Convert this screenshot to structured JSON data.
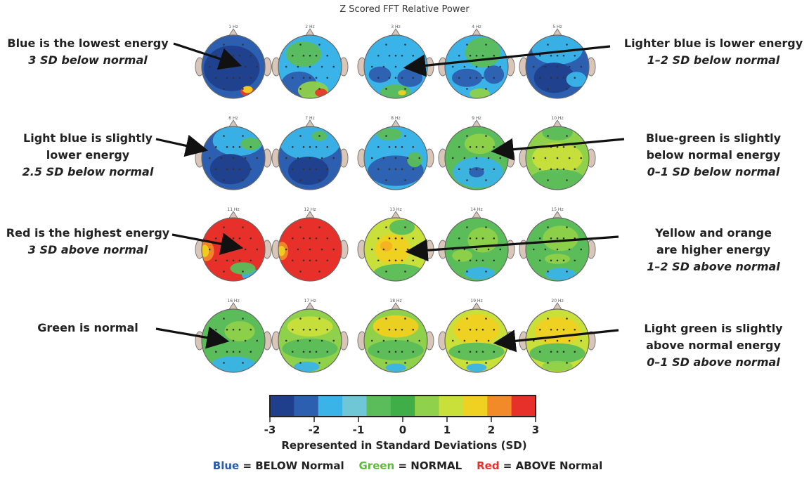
{
  "title": "Z Scored FFT Relative Power",
  "maps": [
    {
      "label": "1 Hz",
      "base": "#2d5fb0",
      "blobs": [
        {
          "c": "#1f3f8c",
          "rx": 0.55,
          "ry": 0.45,
          "ox": -0.05,
          "oy": 0.05
        },
        {
          "c": "#e83a2a",
          "rx": 0.14,
          "ry": 0.1,
          "ox": 0.45,
          "oy": 0.78
        },
        {
          "c": "#f0d020",
          "rx": 0.1,
          "ry": 0.07,
          "ox": 0.45,
          "oy": 0.72
        }
      ]
    },
    {
      "label": "2 Hz",
      "base": "#3ab4e8",
      "blobs": [
        {
          "c": "#2d5fb0",
          "rx": 0.35,
          "ry": 0.25,
          "ox": -0.35,
          "oy": 0.55
        },
        {
          "c": "#8fd14a",
          "rx": 0.3,
          "ry": 0.18,
          "ox": 0.1,
          "oy": 0.75
        },
        {
          "c": "#e83a2a",
          "rx": 0.12,
          "ry": 0.08,
          "ox": 0.35,
          "oy": 0.82
        },
        {
          "c": "#5bbd5a",
          "rx": 0.35,
          "ry": 0.25,
          "ox": -0.2,
          "oy": -0.4
        }
      ]
    },
    {
      "label": "3 Hz",
      "base": "#3ab4e8",
      "blobs": [
        {
          "c": "#2d5fb0",
          "rx": 0.25,
          "ry": 0.18,
          "ox": 0.45,
          "oy": 0.35
        },
        {
          "c": "#2d5fb0",
          "rx": 0.22,
          "ry": 0.16,
          "ox": -0.5,
          "oy": 0.25
        },
        {
          "c": "#5bbd5a",
          "rx": 0.3,
          "ry": 0.15,
          "ox": 0.0,
          "oy": 0.8
        },
        {
          "c": "#f0d020",
          "rx": 0.08,
          "ry": 0.05,
          "ox": 0.2,
          "oy": 0.82
        }
      ]
    },
    {
      "label": "4 Hz",
      "base": "#3ab4e8",
      "blobs": [
        {
          "c": "#5bbd5a",
          "rx": 0.35,
          "ry": 0.3,
          "ox": 0.2,
          "oy": -0.45
        },
        {
          "c": "#2d5fb0",
          "rx": 0.3,
          "ry": 0.18,
          "ox": -0.3,
          "oy": 0.35
        },
        {
          "c": "#2d5fb0",
          "rx": 0.2,
          "ry": 0.18,
          "ox": 0.55,
          "oy": 0.25
        },
        {
          "c": "#8fd14a",
          "rx": 0.2,
          "ry": 0.1,
          "ox": 0.1,
          "oy": 0.85
        }
      ]
    },
    {
      "label": "5 Hz",
      "base": "#2d5fb0",
      "blobs": [
        {
          "c": "#3ab4e8",
          "rx": 0.5,
          "ry": 0.3,
          "ox": 0.0,
          "oy": -0.55
        },
        {
          "c": "#1f3f8c",
          "rx": 0.4,
          "ry": 0.3,
          "ox": -0.1,
          "oy": 0.35
        },
        {
          "c": "#3ab4e8",
          "rx": 0.2,
          "ry": 0.15,
          "ox": 0.6,
          "oy": 0.4
        }
      ]
    },
    {
      "label": "6 Hz",
      "base": "#2d5fb0",
      "blobs": [
        {
          "c": "#3ab4e8",
          "rx": 0.5,
          "ry": 0.3,
          "ox": 0.15,
          "oy": -0.55
        },
        {
          "c": "#5bbd5a",
          "rx": 0.2,
          "ry": 0.12,
          "ox": 0.55,
          "oy": -0.45
        },
        {
          "c": "#1f3f8c",
          "rx": 0.4,
          "ry": 0.3,
          "ox": -0.1,
          "oy": 0.35
        }
      ]
    },
    {
      "label": "7 Hz",
      "base": "#2d5fb0",
      "blobs": [
        {
          "c": "#3ab4e8",
          "rx": 0.6,
          "ry": 0.35,
          "ox": 0.0,
          "oy": -0.5
        },
        {
          "c": "#5bbd5a",
          "rx": 0.15,
          "ry": 0.1,
          "ox": 0.3,
          "oy": -0.7
        },
        {
          "c": "#1f3f8c",
          "rx": 0.4,
          "ry": 0.28,
          "ox": -0.05,
          "oy": 0.4
        }
      ]
    },
    {
      "label": "8 Hz",
      "base": "#3ab4e8",
      "blobs": [
        {
          "c": "#2d5fb0",
          "rx": 0.55,
          "ry": 0.3,
          "ox": 0.0,
          "oy": 0.4
        },
        {
          "c": "#5bbd5a",
          "rx": 0.25,
          "ry": 0.12,
          "ox": -0.2,
          "oy": -0.75
        },
        {
          "c": "#5bbd5a",
          "rx": 0.15,
          "ry": 0.15,
          "ox": 0.6,
          "oy": 0.05
        }
      ]
    },
    {
      "label": "9 Hz",
      "base": "#5bbd5a",
      "blobs": [
        {
          "c": "#3ab4e8",
          "rx": 0.5,
          "ry": 0.3,
          "ox": 0.05,
          "oy": 0.45
        },
        {
          "c": "#2d5fb0",
          "rx": 0.15,
          "ry": 0.1,
          "ox": 0.0,
          "oy": 0.45
        },
        {
          "c": "#8fd14a",
          "rx": 0.3,
          "ry": 0.2,
          "ox": 0.1,
          "oy": -0.45
        }
      ]
    },
    {
      "label": "10 Hz",
      "base": "#8fd14a",
      "blobs": [
        {
          "c": "#c9df3a",
          "rx": 0.5,
          "ry": 0.3,
          "ox": 0.0,
          "oy": 0.0
        },
        {
          "c": "#5bbd5a",
          "rx": 0.55,
          "ry": 0.22,
          "ox": 0.0,
          "oy": 0.7
        },
        {
          "c": "#5bbd5a",
          "rx": 0.3,
          "ry": 0.15,
          "ox": 0.0,
          "oy": -0.8
        }
      ]
    },
    {
      "label": "11 Hz",
      "base": "#e8302a",
      "blobs": [
        {
          "c": "#f28a2a",
          "rx": 0.15,
          "ry": 0.2,
          "ox": -0.85,
          "oy": 0.05
        },
        {
          "c": "#f0d020",
          "rx": 0.08,
          "ry": 0.12,
          "ox": -0.9,
          "oy": 0.05
        },
        {
          "c": "#3ab4e8",
          "rx": 0.18,
          "ry": 0.12,
          "ox": 0.55,
          "oy": 0.8
        },
        {
          "c": "#5bbd5a",
          "rx": 0.25,
          "ry": 0.12,
          "ox": 0.3,
          "oy": 0.6
        }
      ]
    },
    {
      "label": "12 Hz",
      "base": "#e8302a",
      "blobs": [
        {
          "c": "#f28a2a",
          "rx": 0.12,
          "ry": 0.18,
          "ox": -0.88,
          "oy": 0.05
        },
        {
          "c": "#f0d020",
          "rx": 0.07,
          "ry": 0.1,
          "ox": -0.9,
          "oy": 0.05
        }
      ]
    },
    {
      "label": "13 Hz",
      "base": "#c9df3a",
      "blobs": [
        {
          "c": "#f0d020",
          "rx": 0.35,
          "ry": 0.3,
          "ox": -0.1,
          "oy": 0.0
        },
        {
          "c": "#f5b020",
          "rx": 0.12,
          "ry": 0.1,
          "ox": -0.3,
          "oy": -0.1
        },
        {
          "c": "#5bbd5a",
          "rx": 0.5,
          "ry": 0.18,
          "ox": 0.1,
          "oy": 0.75
        },
        {
          "c": "#5bbd5a",
          "rx": 0.25,
          "ry": 0.15,
          "ox": 0.2,
          "oy": -0.7
        }
      ]
    },
    {
      "label": "14 Hz",
      "base": "#5bbd5a",
      "blobs": [
        {
          "c": "#8fd14a",
          "rx": 0.3,
          "ry": 0.25,
          "ox": 0.2,
          "oy": -0.3
        },
        {
          "c": "#3ab4e8",
          "rx": 0.3,
          "ry": 0.12,
          "ox": 0.1,
          "oy": 0.75
        },
        {
          "c": "#8fd14a",
          "rx": 0.2,
          "ry": 0.12,
          "ox": -0.45,
          "oy": 0.2
        }
      ]
    },
    {
      "label": "15 Hz",
      "base": "#5bbd5a",
      "blobs": [
        {
          "c": "#8fd14a",
          "rx": 0.35,
          "ry": 0.25,
          "ox": 0.1,
          "oy": -0.35
        },
        {
          "c": "#3ab4e8",
          "rx": 0.3,
          "ry": 0.12,
          "ox": 0.1,
          "oy": 0.78
        },
        {
          "c": "#8fd14a",
          "rx": 0.25,
          "ry": 0.1,
          "ox": 0.0,
          "oy": 0.3
        }
      ]
    },
    {
      "label": "16 Hz",
      "base": "#5bbd5a",
      "blobs": [
        {
          "c": "#3ab4e8",
          "rx": 0.45,
          "ry": 0.18,
          "ox": 0.0,
          "oy": 0.78
        },
        {
          "c": "#8fd14a",
          "rx": 0.3,
          "ry": 0.2,
          "ox": 0.2,
          "oy": -0.3
        }
      ]
    },
    {
      "label": "17 Hz",
      "base": "#8fd14a",
      "blobs": [
        {
          "c": "#c9df3a",
          "rx": 0.45,
          "ry": 0.2,
          "ox": 0.0,
          "oy": -0.45
        },
        {
          "c": "#5bbd5a",
          "rx": 0.55,
          "ry": 0.2,
          "ox": 0.0,
          "oy": 0.25
        },
        {
          "c": "#3ab4e8",
          "rx": 0.25,
          "ry": 0.1,
          "ox": -0.1,
          "oy": 0.82
        }
      ]
    },
    {
      "label": "18 Hz",
      "base": "#8fd14a",
      "blobs": [
        {
          "c": "#f0d020",
          "rx": 0.45,
          "ry": 0.22,
          "ox": 0.0,
          "oy": -0.45
        },
        {
          "c": "#5bbd5a",
          "rx": 0.55,
          "ry": 0.2,
          "ox": 0.0,
          "oy": 0.3
        },
        {
          "c": "#3ab4e8",
          "rx": 0.2,
          "ry": 0.08,
          "ox": 0.0,
          "oy": 0.85
        }
      ]
    },
    {
      "label": "19 Hz",
      "base": "#c9df3a",
      "blobs": [
        {
          "c": "#f0d020",
          "rx": 0.45,
          "ry": 0.3,
          "ox": 0.0,
          "oy": -0.35
        },
        {
          "c": "#5bbd5a",
          "rx": 0.55,
          "ry": 0.18,
          "ox": 0.0,
          "oy": 0.35
        },
        {
          "c": "#3ab4e8",
          "rx": 0.2,
          "ry": 0.08,
          "ox": 0.0,
          "oy": 0.85
        }
      ]
    },
    {
      "label": "20 Hz",
      "base": "#c9df3a",
      "blobs": [
        {
          "c": "#f0d020",
          "rx": 0.45,
          "ry": 0.28,
          "ox": 0.0,
          "oy": -0.3
        },
        {
          "c": "#5bbd5a",
          "rx": 0.55,
          "ry": 0.2,
          "ox": 0.0,
          "oy": 0.4
        },
        {
          "c": "#8fd14a",
          "rx": 0.3,
          "ry": 0.1,
          "ox": 0.0,
          "oy": 0.8
        }
      ]
    }
  ],
  "annotations": [
    {
      "key": "blue-lowest",
      "lines": [
        "Blue is the lowest energy"
      ],
      "sub": "3 SD below normal"
    },
    {
      "key": "lighter-blue",
      "lines": [
        "Lighter blue is lower energy"
      ],
      "sub": "1–2 SD below normal"
    },
    {
      "key": "light-blue",
      "lines": [
        "Light blue is slightly",
        "lower energy"
      ],
      "sub": "2.5 SD below normal"
    },
    {
      "key": "blue-green",
      "lines": [
        "Blue-green is slightly",
        "below normal energy"
      ],
      "sub": "0–1 SD below normal"
    },
    {
      "key": "red-highest",
      "lines": [
        "Red is the highest energy"
      ],
      "sub": "3 SD above normal"
    },
    {
      "key": "yellow-orange",
      "lines": [
        "Yellow and orange",
        "are higher energy"
      ],
      "sub": "1–2 SD above normal"
    },
    {
      "key": "green-normal",
      "lines": [
        "Green is normal"
      ],
      "sub": ""
    },
    {
      "key": "light-green",
      "lines": [
        "Light green is slightly",
        "above normal energy"
      ],
      "sub": "0–1 SD above normal"
    }
  ],
  "colorbar": {
    "colors": [
      "#1f3f8c",
      "#2d5fb0",
      "#3ab4e8",
      "#6fc7d6",
      "#5bbd5a",
      "#3fae49",
      "#8fd14a",
      "#c9df3a",
      "#f0d020",
      "#f28a2a",
      "#e8302a"
    ],
    "ticks": [
      "-3",
      "-2",
      "-1",
      "0",
      "1",
      "2",
      "3"
    ],
    "title": "Represented in Standard Deviations (SD)"
  },
  "legend": {
    "blue_word": "Blue",
    "blue_rest": " = BELOW Normal",
    "green_word": "Green",
    "green_rest": " = NORMAL",
    "red_word": "Red",
    "red_rest": " = ABOVE Normal",
    "blue_color": "#2a5ab0",
    "green_color": "#5dbb3a",
    "red_color": "#e8302a"
  }
}
